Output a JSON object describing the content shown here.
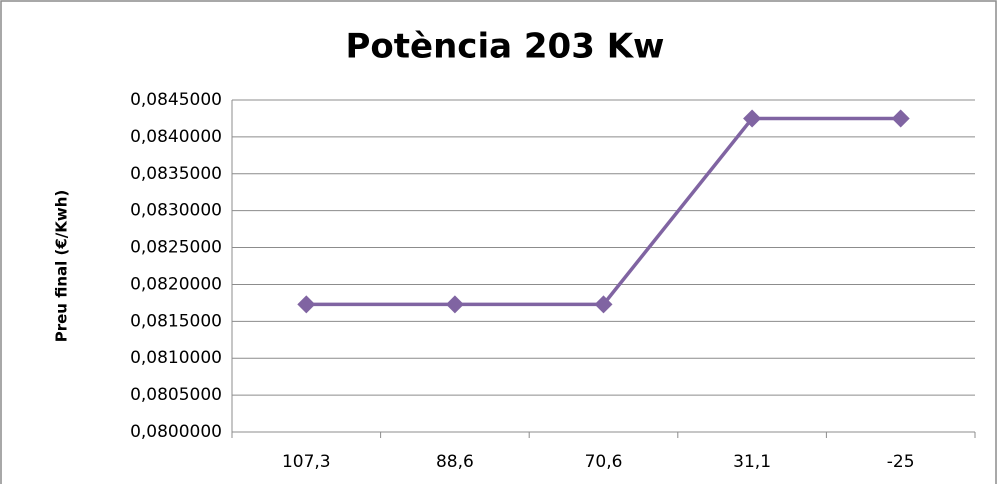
{
  "chart_data": {
    "type": "line",
    "title": "Potència 203 Kw",
    "y_label": "Preu final (€/Kwh)",
    "categories": [
      "107,3",
      "88,6",
      "70,6",
      "31,1",
      "-25"
    ],
    "series": [
      {
        "name": "Preu final",
        "color": "#8064a2",
        "values": [
          0.08173,
          0.08173,
          0.08173,
          0.08425,
          0.08425
        ]
      }
    ],
    "ylim": [
      0.08,
      0.0845
    ],
    "yticks": [
      {
        "value": 0.08,
        "label": "0,0800000"
      },
      {
        "value": 0.0805,
        "label": "0,0805000"
      },
      {
        "value": 0.081,
        "label": "0,0810000"
      },
      {
        "value": 0.0815,
        "label": "0,0815000"
      },
      {
        "value": 0.082,
        "label": "0,0820000"
      },
      {
        "value": 0.0825,
        "label": "0,0825000"
      },
      {
        "value": 0.083,
        "label": "0,0830000"
      },
      {
        "value": 0.0835,
        "label": "0,0835000"
      },
      {
        "value": 0.084,
        "label": "0,0840000"
      },
      {
        "value": 0.0845,
        "label": "0,0845000"
      }
    ],
    "grid": true
  }
}
